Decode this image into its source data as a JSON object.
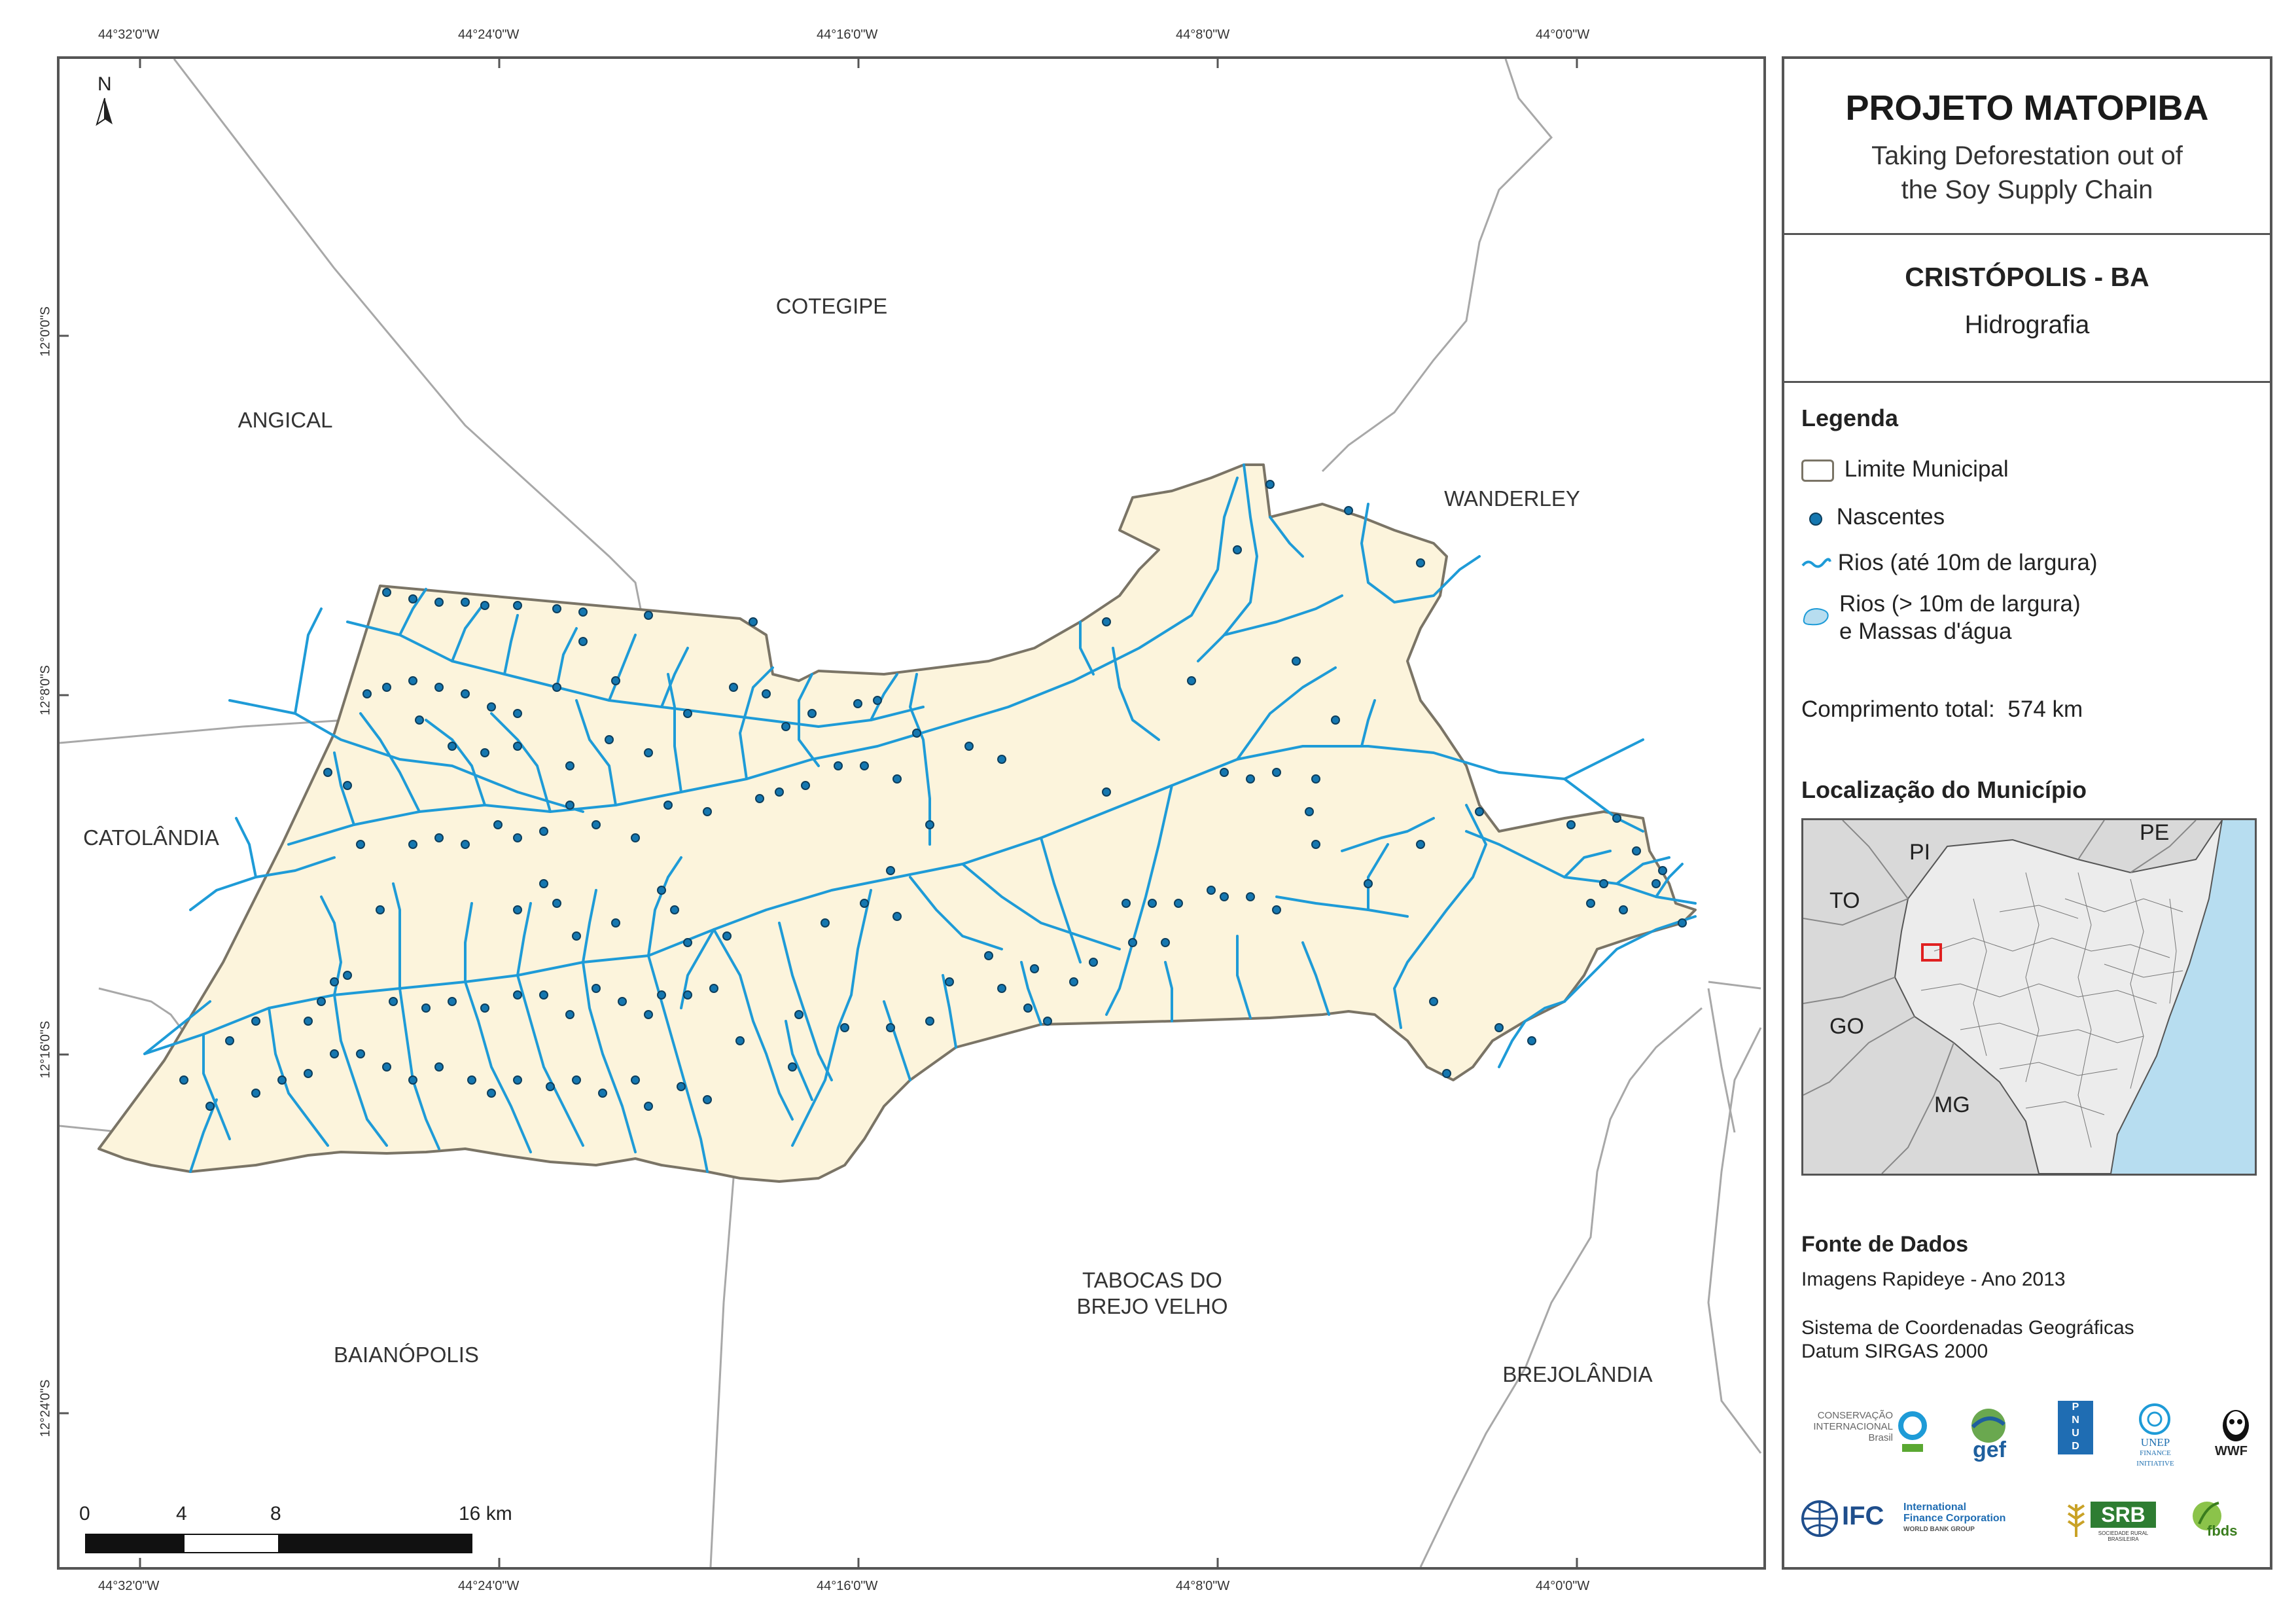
{
  "graticule": {
    "top": [
      "44°32'0\"W",
      "44°24'0\"W",
      "44°16'0\"W",
      "44°8'0\"W",
      "44°0'0\"W"
    ],
    "bottom": [
      "44°32'0\"W",
      "44°24'0\"W",
      "44°16'0\"W",
      "44°8'0\"W",
      "44°0'0\"W"
    ],
    "left": [
      "12°0'0\"S",
      "12°8'0\"S",
      "12°16'0\"S",
      "12°24'0\"S"
    ]
  },
  "north_arrow": "N",
  "places": {
    "cotegipe": "COTEGIPE",
    "angical": "ANGICAL",
    "wanderley": "WANDERLEY",
    "catolandia": "CATOLÂNDIA",
    "tabocas_line1": "TABOCAS DO",
    "tabocas_line2": "BREJO VELHO",
    "baianopolis": "BAIANÓPOLIS",
    "brejolandia": "BREJOLÂNDIA"
  },
  "scale_bar": {
    "labels": [
      "0",
      "4",
      "8",
      "16 km"
    ]
  },
  "panel": {
    "title": "PROJETO MATOPIBA",
    "subtitle_line1": "Taking Deforestation out of",
    "subtitle_line2": "the Soy Supply Chain",
    "municipality": "CRISTÓPOLIS - BA",
    "theme": "Hidrografia",
    "legend": {
      "title": "Legenda",
      "limit": "Limite Municipal",
      "springs": "Nascentes",
      "small_rivers": "Rios (até 10m de largura)",
      "large_rivers_line1": "Rios (> 10m de largura)",
      "large_rivers_line2": "e Massas d'água"
    },
    "total_length_label": "Comprimento total:",
    "total_length_value": "574 km",
    "location_title": "Localização do Município",
    "location_states": [
      "PI",
      "PE",
      "TO",
      "GO",
      "MG"
    ],
    "sources_title": "Fonte de Dados",
    "source_line1": "Imagens Rapideye - Ano 2013",
    "source_line2": "Sistema de Coordenadas Geográficas",
    "source_line3": "Datum SIRGAS 2000"
  },
  "logos": {
    "ci_line1": "CONSERVAÇÃO",
    "ci_line2": "INTERNACIONAL",
    "ci_line3": "Brasil",
    "gef": "gef",
    "undp_1": "P",
    "undp_2": "N",
    "undp_3": "U",
    "undp_4": "D",
    "unep": "UNEP",
    "unep_2": "FINANCE",
    "unep_3": "INITIATIVE",
    "wwf": "WWF",
    "ifc": "IFC",
    "ifc_1": "International",
    "ifc_2": "Finance Corporation",
    "ifc_3": "WORLD BANK GROUP",
    "srb": "SRB",
    "srb_sub": "SOCIEDADE RURAL BRASILEIRA",
    "fbds": "fbds"
  },
  "colors": {
    "municipality_fill": "#fcf4dc",
    "river": "#1e9bd7",
    "spring": "#1577b0",
    "boundary": "#7a7466",
    "location_bg": "#d9d9d9",
    "ocean": "#b7ddf0",
    "highlight": "#e02020"
  }
}
